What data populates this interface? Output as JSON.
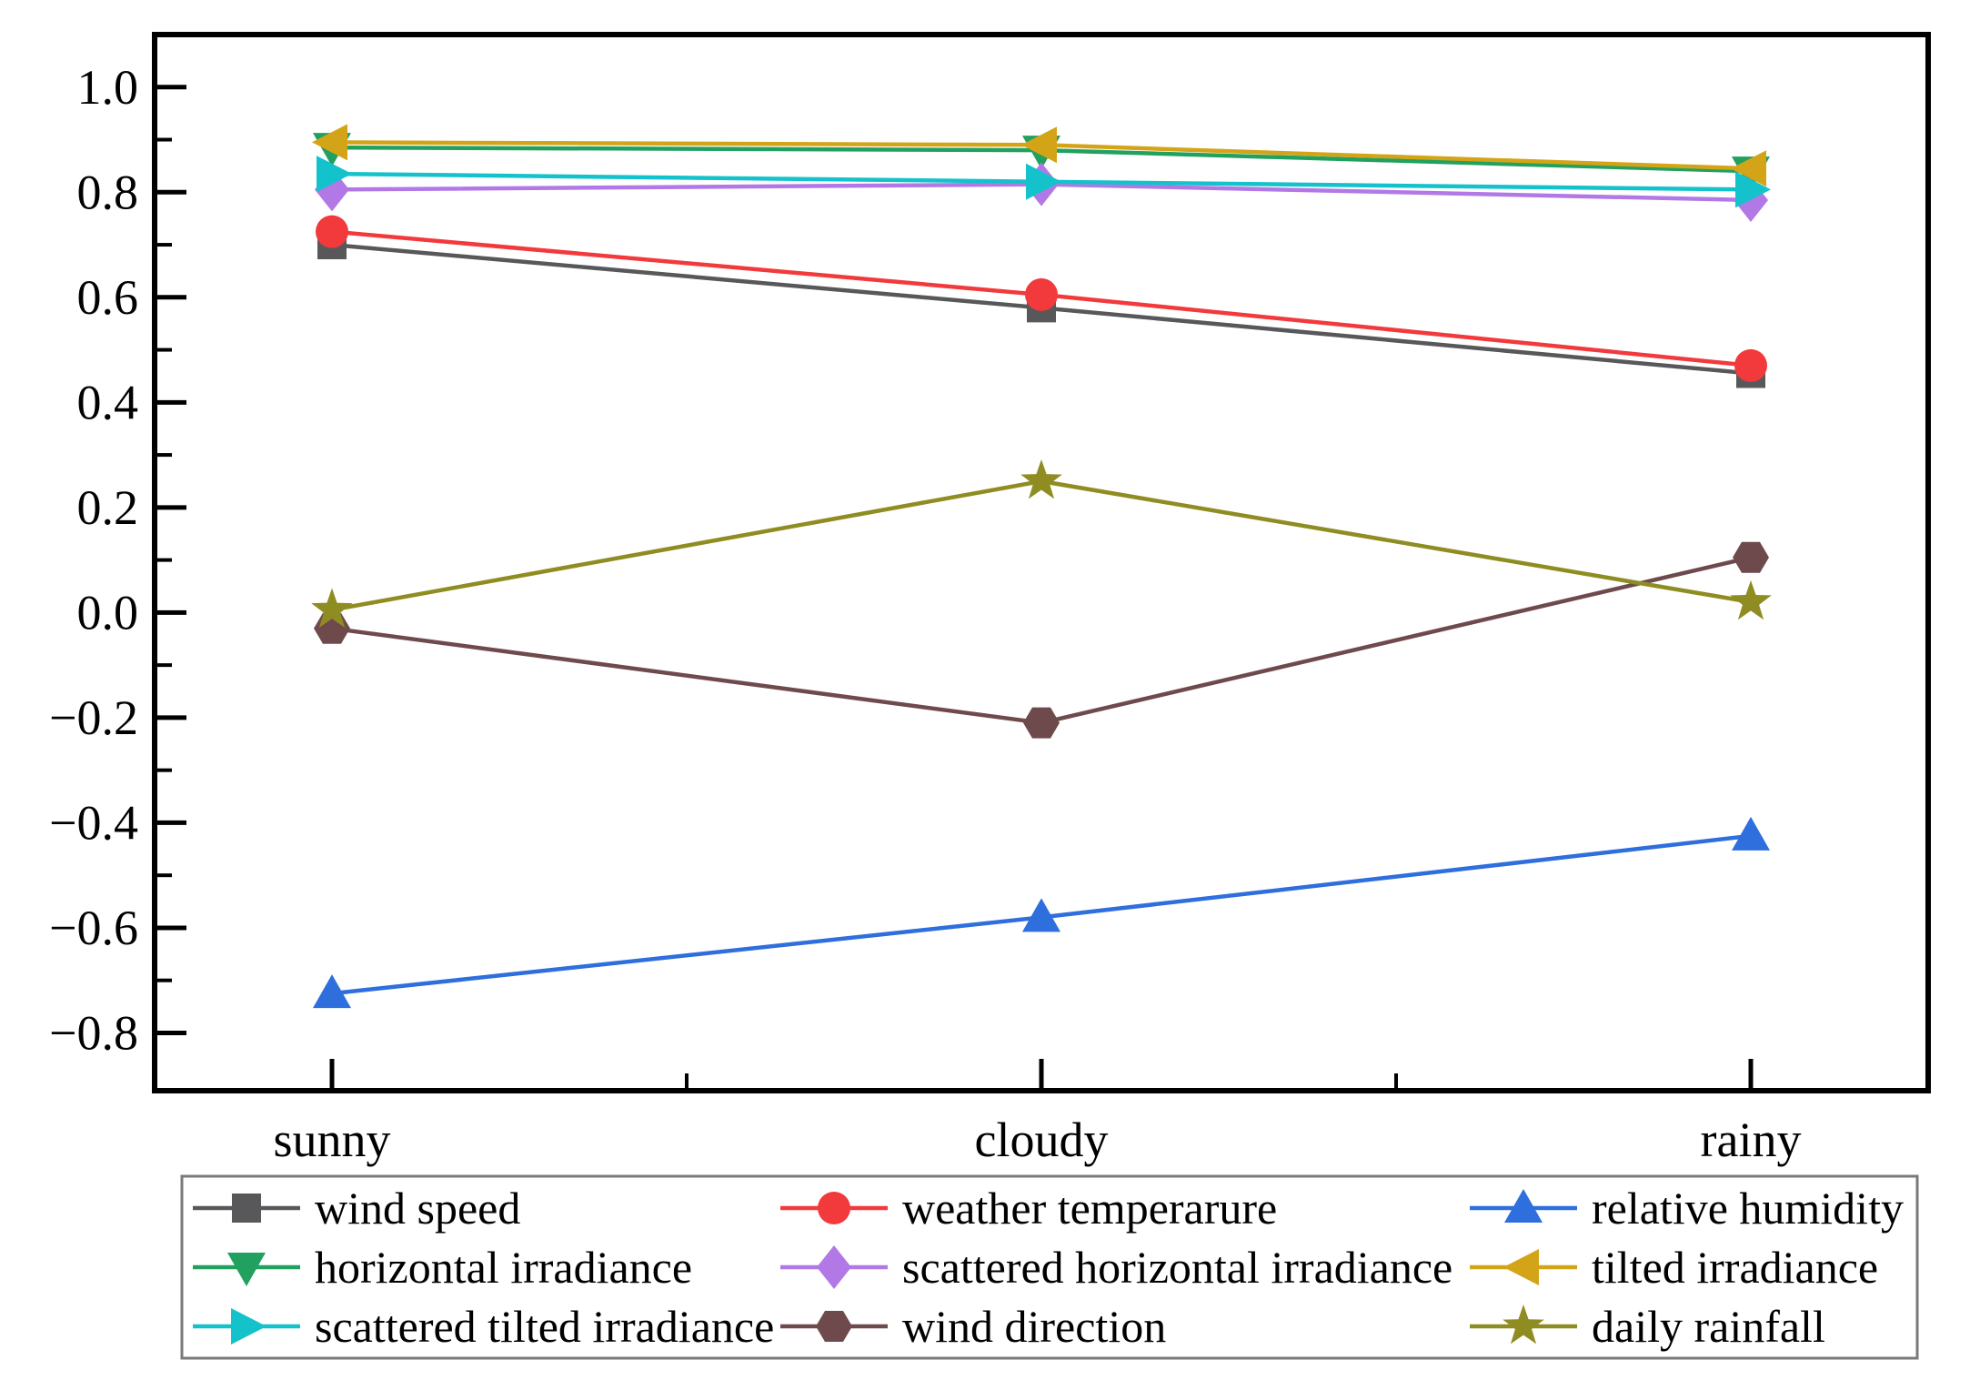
{
  "chart_data": {
    "type": "line",
    "title": "",
    "categories": [
      "sunny",
      "cloudy",
      "rainy"
    ],
    "series": [
      {
        "name": "wind speed",
        "marker": "square",
        "color": "#58585a",
        "values": [
          0.7,
          0.58,
          0.455
        ]
      },
      {
        "name": "weather temperarure",
        "marker": "circle",
        "color": "#f23a3c",
        "values": [
          0.725,
          0.605,
          0.47
        ]
      },
      {
        "name": "relative humidity",
        "marker": "triangle-up",
        "color": "#2e6edd",
        "values": [
          -0.725,
          -0.58,
          -0.425
        ]
      },
      {
        "name": "horizontal irradiance",
        "marker": "triangle-down",
        "color": "#22a05f",
        "values": [
          0.885,
          0.88,
          0.84
        ]
      },
      {
        "name": "scattered horizontal irradiance",
        "marker": "diamond",
        "color": "#b279e6",
        "values": [
          0.805,
          0.815,
          0.785
        ]
      },
      {
        "name": "tilted irradiance",
        "marker": "triangle-left",
        "color": "#d4a418",
        "values": [
          0.895,
          0.89,
          0.845
        ]
      },
      {
        "name": "scattered tilted irradiance",
        "marker": "triangle-right",
        "color": "#14c2cc",
        "values": [
          0.835,
          0.82,
          0.805
        ]
      },
      {
        "name": "wind direction",
        "marker": "hexagon",
        "color": "#6f4a4d",
        "values": [
          -0.03,
          -0.21,
          0.105
        ]
      },
      {
        "name": "daily rainfall",
        "marker": "star",
        "color": "#8f8d22",
        "values": [
          0.005,
          0.25,
          0.02
        ]
      }
    ],
    "xlabel": "",
    "ylabel": "",
    "ylim": [
      -0.91,
      1.1
    ],
    "y_axis": {
      "major_tick_values": [
        1.0,
        0.8,
        0.6,
        0.4,
        0.2,
        0.0,
        -0.2,
        -0.4,
        -0.6,
        -0.8
      ],
      "major_tick_labels": [
        "1.0",
        "0.8",
        "0.6",
        "0.4",
        "0.2",
        "0.0",
        "−0.2",
        "−0.4",
        "−0.6",
        "−0.8"
      ],
      "minor_tick_values": [
        0.9,
        0.7,
        0.5,
        0.3,
        0.1,
        -0.1,
        -0.3,
        -0.5,
        -0.7
      ]
    },
    "x_axis": {
      "tick_labels": [
        "sunny",
        "cloudy",
        "rainy"
      ]
    },
    "grid": false,
    "legend_position": "bottom",
    "legend_columns": [
      [
        0,
        3,
        6
      ],
      [
        1,
        4,
        7
      ],
      [
        2,
        5,
        8
      ]
    ],
    "axis_color": "#000000",
    "text_color": "#000000",
    "legend_border_color": "#7a7a7a",
    "background_color": "#ffffff"
  }
}
